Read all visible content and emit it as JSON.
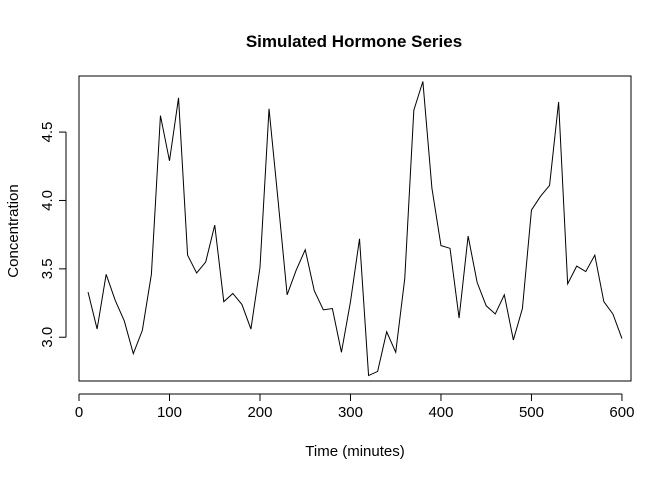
{
  "chart_data": {
    "type": "line",
    "title": "Simulated Hormone Series",
    "xlabel": "Time (minutes)",
    "ylabel": "Concentration",
    "xlim": [
      0,
      610
    ],
    "ylim": [
      2.68,
      4.91
    ],
    "xticks": [
      0,
      100,
      200,
      300,
      400,
      500,
      600
    ],
    "yticks": [
      3.0,
      3.5,
      4.0,
      4.5
    ],
    "ytick_labels": [
      "3.0",
      "3.5",
      "4.0",
      "4.5"
    ],
    "grid": false,
    "legend": "none",
    "line_color": "#000000",
    "series": [
      {
        "x": [
          10,
          20,
          30,
          40,
          50,
          60,
          70,
          80,
          90,
          100,
          110,
          120,
          130,
          140,
          150,
          160,
          170,
          180,
          190,
          200,
          210,
          220,
          230,
          240,
          250,
          260,
          270,
          280,
          290,
          300,
          310,
          320,
          330,
          340,
          350,
          360,
          370,
          380,
          390,
          400,
          410,
          420,
          430,
          440,
          450,
          460,
          470,
          480,
          490,
          500,
          510,
          520,
          530,
          540,
          550,
          560,
          570,
          580,
          590,
          600
        ],
        "values": [
          3.33,
          3.06,
          3.46,
          3.27,
          3.12,
          2.88,
          3.05,
          3.46,
          4.62,
          4.29,
          4.75,
          3.6,
          3.47,
          3.55,
          3.82,
          3.26,
          3.32,
          3.24,
          3.06,
          3.51,
          4.67,
          4.0,
          3.31,
          3.49,
          3.64,
          3.34,
          3.2,
          3.21,
          2.89,
          3.26,
          3.72,
          2.72,
          2.75,
          3.04,
          2.89,
          3.43,
          4.66,
          4.87,
          4.09,
          3.67,
          3.65,
          3.14,
          3.74,
          3.4,
          3.23,
          3.17,
          3.31,
          2.98,
          3.21,
          3.93,
          4.03,
          4.11,
          4.72,
          3.39,
          3.52,
          3.48,
          3.6,
          3.26,
          3.17,
          2.99
        ]
      }
    ]
  }
}
